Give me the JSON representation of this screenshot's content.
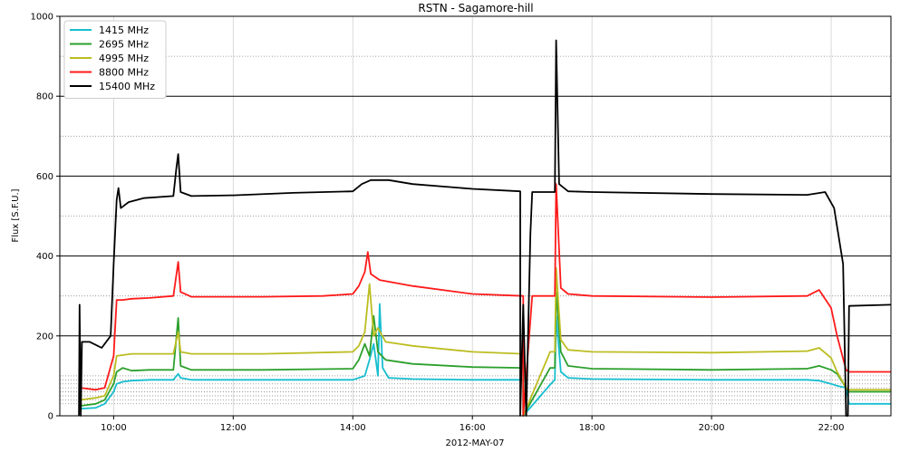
{
  "chart_data": {
    "type": "line",
    "title": "RSTN - Sagamore-hill",
    "xlabel": "2012-MAY-07",
    "ylabel": "Flux [S.F.U.]",
    "xlim": [
      9.1,
      23.0
    ],
    "ylim": [
      0,
      1000
    ],
    "x_unit": "hours (UT)",
    "x_ticks": [
      10,
      12,
      14,
      16,
      18,
      20,
      22
    ],
    "x_tick_labels": [
      "10:00",
      "12:00",
      "14:00",
      "16:00",
      "18:00",
      "20:00",
      "22:00"
    ],
    "y_ticks": [
      0,
      200,
      400,
      600,
      800,
      1000
    ],
    "y_tick_labels": [
      "0",
      "200",
      "400",
      "600",
      "800",
      "1000"
    ],
    "major_hlines": [
      200,
      400,
      600,
      800
    ],
    "minor_hlines": [
      30,
      40,
      50,
      60,
      70,
      80,
      90,
      100,
      300,
      500,
      700,
      900
    ],
    "grid": true,
    "legend_position": "top-left",
    "series": [
      {
        "name": "1415 MHz",
        "color": "#17becf",
        "points": [
          [
            9.45,
            18
          ],
          [
            9.7,
            20
          ],
          [
            9.85,
            30
          ],
          [
            10.0,
            60
          ],
          [
            10.05,
            80
          ],
          [
            10.15,
            85
          ],
          [
            10.3,
            88
          ],
          [
            10.6,
            90
          ],
          [
            11.0,
            90
          ],
          [
            11.08,
            105
          ],
          [
            11.12,
            95
          ],
          [
            11.3,
            90
          ],
          [
            12.5,
            90
          ],
          [
            14.0,
            90
          ],
          [
            14.2,
            100
          ],
          [
            14.28,
            140
          ],
          [
            14.35,
            180
          ],
          [
            14.42,
            100
          ],
          [
            14.45,
            280
          ],
          [
            14.5,
            120
          ],
          [
            14.6,
            95
          ],
          [
            15.0,
            92
          ],
          [
            16.0,
            90
          ],
          [
            16.85,
            90
          ],
          [
            16.85,
            0
          ],
          [
            17.3,
            78
          ],
          [
            17.38,
            90
          ],
          [
            17.4,
            250
          ],
          [
            17.48,
            110
          ],
          [
            17.6,
            95
          ],
          [
            18.0,
            92
          ],
          [
            20.0,
            90
          ],
          [
            21.6,
            90
          ],
          [
            21.8,
            88
          ],
          [
            22.0,
            80
          ],
          [
            22.1,
            75
          ],
          [
            22.25,
            70
          ],
          [
            22.3,
            30
          ],
          [
            23.0,
            30
          ]
        ]
      },
      {
        "name": "2695 MHz",
        "color": "#2ca02c",
        "points": [
          [
            9.45,
            25
          ],
          [
            9.7,
            30
          ],
          [
            9.85,
            40
          ],
          [
            10.0,
            80
          ],
          [
            10.05,
            110
          ],
          [
            10.15,
            120
          ],
          [
            10.3,
            113
          ],
          [
            10.6,
            115
          ],
          [
            11.0,
            115
          ],
          [
            11.08,
            245
          ],
          [
            11.12,
            125
          ],
          [
            11.3,
            115
          ],
          [
            12.5,
            115
          ],
          [
            14.0,
            118
          ],
          [
            14.1,
            140
          ],
          [
            14.2,
            180
          ],
          [
            14.28,
            150
          ],
          [
            14.35,
            250
          ],
          [
            14.42,
            160
          ],
          [
            14.55,
            140
          ],
          [
            15.0,
            130
          ],
          [
            16.0,
            122
          ],
          [
            16.85,
            120
          ],
          [
            16.85,
            0
          ],
          [
            17.3,
            120
          ],
          [
            17.38,
            120
          ],
          [
            17.4,
            310
          ],
          [
            17.48,
            160
          ],
          [
            17.6,
            125
          ],
          [
            18.0,
            118
          ],
          [
            20.0,
            115
          ],
          [
            21.6,
            118
          ],
          [
            21.8,
            125
          ],
          [
            22.0,
            115
          ],
          [
            22.1,
            105
          ],
          [
            22.25,
            70
          ],
          [
            22.3,
            60
          ],
          [
            23.0,
            60
          ]
        ]
      },
      {
        "name": "4995 MHz",
        "color": "#bcbd22",
        "points": [
          [
            9.45,
            40
          ],
          [
            9.7,
            45
          ],
          [
            9.85,
            50
          ],
          [
            10.0,
            100
          ],
          [
            10.05,
            150
          ],
          [
            10.15,
            152
          ],
          [
            10.3,
            155
          ],
          [
            10.6,
            155
          ],
          [
            11.0,
            155
          ],
          [
            11.08,
            210
          ],
          [
            11.12,
            160
          ],
          [
            11.3,
            155
          ],
          [
            12.5,
            155
          ],
          [
            14.0,
            160
          ],
          [
            14.1,
            175
          ],
          [
            14.2,
            210
          ],
          [
            14.28,
            330
          ],
          [
            14.35,
            200
          ],
          [
            14.42,
            220
          ],
          [
            14.55,
            185
          ],
          [
            15.0,
            175
          ],
          [
            16.0,
            160
          ],
          [
            16.85,
            155
          ],
          [
            16.85,
            0
          ],
          [
            17.3,
            160
          ],
          [
            17.38,
            160
          ],
          [
            17.4,
            370
          ],
          [
            17.48,
            190
          ],
          [
            17.6,
            165
          ],
          [
            18.0,
            160
          ],
          [
            20.0,
            158
          ],
          [
            21.6,
            162
          ],
          [
            21.8,
            170
          ],
          [
            22.0,
            145
          ],
          [
            22.1,
            110
          ],
          [
            22.25,
            70
          ],
          [
            22.3,
            65
          ],
          [
            23.0,
            65
          ]
        ]
      },
      {
        "name": "8800 MHz",
        "color": "#ff1a1a",
        "points": [
          [
            9.45,
            70
          ],
          [
            9.7,
            65
          ],
          [
            9.85,
            70
          ],
          [
            10.0,
            150
          ],
          [
            10.05,
            290
          ],
          [
            10.15,
            290
          ],
          [
            10.3,
            293
          ],
          [
            10.6,
            295
          ],
          [
            11.0,
            300
          ],
          [
            11.08,
            385
          ],
          [
            11.12,
            310
          ],
          [
            11.3,
            298
          ],
          [
            12.5,
            298
          ],
          [
            13.5,
            300
          ],
          [
            14.0,
            305
          ],
          [
            14.1,
            325
          ],
          [
            14.2,
            360
          ],
          [
            14.25,
            410
          ],
          [
            14.3,
            355
          ],
          [
            14.45,
            340
          ],
          [
            15.0,
            325
          ],
          [
            16.0,
            305
          ],
          [
            16.85,
            300
          ],
          [
            16.85,
            0
          ],
          [
            17.0,
            300
          ],
          [
            17.38,
            300
          ],
          [
            17.4,
            580
          ],
          [
            17.48,
            320
          ],
          [
            17.6,
            305
          ],
          [
            18.0,
            300
          ],
          [
            20.0,
            297
          ],
          [
            21.6,
            300
          ],
          [
            21.8,
            315
          ],
          [
            22.0,
            270
          ],
          [
            22.1,
            200
          ],
          [
            22.25,
            115
          ],
          [
            22.3,
            110
          ],
          [
            23.0,
            110
          ]
        ]
      },
      {
        "name": "15400 MHz",
        "color": "#000000",
        "points": [
          [
            9.42,
            0
          ],
          [
            9.43,
            278
          ],
          [
            9.45,
            0
          ],
          [
            9.47,
            185
          ],
          [
            9.6,
            185
          ],
          [
            9.8,
            170
          ],
          [
            9.95,
            200
          ],
          [
            10.0,
            380
          ],
          [
            10.05,
            540
          ],
          [
            10.08,
            570
          ],
          [
            10.12,
            520
          ],
          [
            10.25,
            535
          ],
          [
            10.5,
            545
          ],
          [
            11.0,
            550
          ],
          [
            11.05,
            620
          ],
          [
            11.08,
            655
          ],
          [
            11.12,
            560
          ],
          [
            11.3,
            550
          ],
          [
            12.0,
            552
          ],
          [
            13.0,
            558
          ],
          [
            14.0,
            562
          ],
          [
            14.15,
            580
          ],
          [
            14.3,
            590
          ],
          [
            14.6,
            590
          ],
          [
            15.0,
            580
          ],
          [
            16.0,
            568
          ],
          [
            16.8,
            562
          ],
          [
            16.8,
            0
          ],
          [
            16.85,
            278
          ],
          [
            16.9,
            0
          ],
          [
            16.97,
            455
          ],
          [
            17.0,
            560
          ],
          [
            17.38,
            560
          ],
          [
            17.4,
            940
          ],
          [
            17.45,
            580
          ],
          [
            17.6,
            562
          ],
          [
            18.0,
            560
          ],
          [
            20.0,
            555
          ],
          [
            21.6,
            553
          ],
          [
            21.9,
            560
          ],
          [
            22.05,
            520
          ],
          [
            22.2,
            380
          ],
          [
            22.25,
            0
          ],
          [
            22.28,
            0
          ],
          [
            22.3,
            275
          ],
          [
            23.0,
            278
          ]
        ]
      }
    ]
  }
}
